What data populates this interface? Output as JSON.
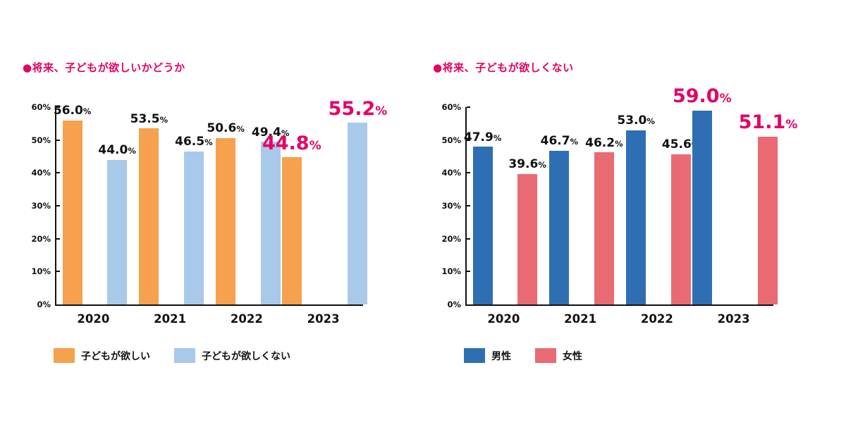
{
  "background": "#ffffff",
  "accent_color": "#e50065",
  "axis_color": "#111111",
  "chart_data": [
    {
      "type": "bar",
      "title": "●将来、子どもが欲しいかどうか",
      "title_color": "#e50065",
      "categories": [
        "2020",
        "2021",
        "2022",
        "2023"
      ],
      "series": [
        {
          "name": "子どもが欲しい",
          "color": "#f5a14d",
          "values": [
            56.0,
            53.5,
            50.6,
            44.8
          ]
        },
        {
          "name": "子どもが欲しくない",
          "color": "#a9c9ea",
          "values": [
            44.0,
            46.5,
            49.4,
            55.2
          ]
        }
      ],
      "ylim": [
        0,
        60
      ],
      "yticks": [
        "0%",
        "10%",
        "20%",
        "30%",
        "40%",
        "50%",
        "60%"
      ],
      "grid": false,
      "legend_position": "bottom",
      "highlight": {
        "category": "2023",
        "color": "#e50065"
      }
    },
    {
      "type": "bar",
      "title": "●将来、子どもが欲しくない",
      "title_color": "#e50065",
      "categories": [
        "2020",
        "2021",
        "2022",
        "2023"
      ],
      "series": [
        {
          "name": "男性",
          "color": "#2e6fb4",
          "values": [
            47.9,
            46.7,
            53.0,
            59.0
          ]
        },
        {
          "name": "女性",
          "color": "#ea6a74",
          "values": [
            39.6,
            46.2,
            45.6,
            51.1
          ]
        }
      ],
      "ylim": [
        0,
        60
      ],
      "yticks": [
        "0%",
        "10%",
        "20%",
        "30%",
        "40%",
        "50%",
        "60%"
      ],
      "grid": false,
      "legend_position": "bottom",
      "highlight": {
        "category": "2023",
        "color": "#e50065"
      }
    }
  ]
}
